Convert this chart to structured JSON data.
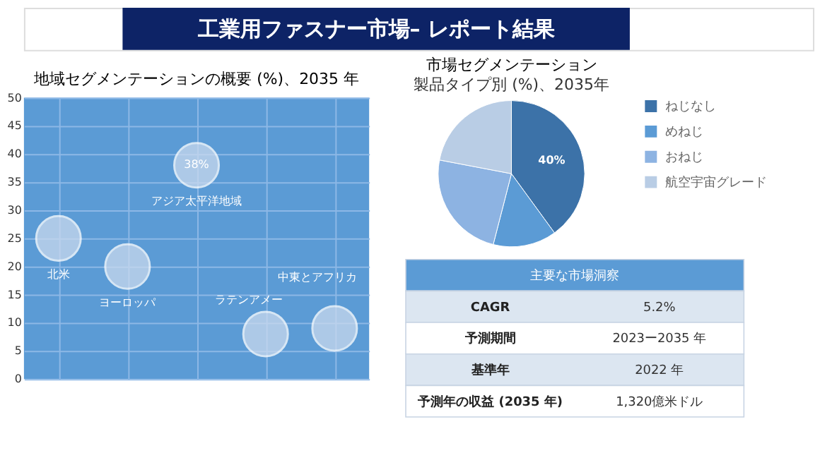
{
  "chart_data": [
    {
      "type": "other",
      "title": "工業用ファスナー市場– レポート結果"
    },
    {
      "type": "bubble",
      "title": "地域セグメンテーションの概要 (%)、2035 年",
      "categories": [
        null,
        null,
        null,
        null,
        null
      ],
      "ylim": [
        0,
        50
      ],
      "yticks": [
        0,
        5,
        10,
        15,
        20,
        25,
        30,
        35,
        40,
        45,
        50
      ],
      "grid": true,
      "tick_labels": "y",
      "legend": false,
      "series": [
        {
          "name": "北米",
          "color": "#c9d9ee",
          "values": [
            25,
            null,
            null,
            null,
            null
          ],
          "sizes": [
            1,
            null,
            null,
            null,
            null
          ]
        },
        {
          "name": "ヨーロッパ",
          "color": "#c9d9ee",
          "values": [
            null,
            20,
            null,
            null,
            null
          ],
          "sizes": [
            null,
            1,
            null,
            null,
            null
          ]
        },
        {
          "name": "アジア太平洋地域",
          "color": "#c9d9ee",
          "values": [
            null,
            null,
            38,
            null,
            null
          ],
          "sizes": [
            null,
            null,
            1,
            null,
            null
          ],
          "value_labels": [
            null,
            null,
            "38%",
            null,
            null
          ]
        },
        {
          "name": "ラテンアメー",
          "color": "#c9d9ee",
          "values": [
            null,
            null,
            null,
            8,
            null
          ],
          "sizes": [
            null,
            null,
            null,
            1,
            null
          ]
        },
        {
          "name": "中東とアフリカ",
          "color": "#c9d9ee",
          "values": [
            null,
            null,
            null,
            null,
            9
          ],
          "sizes": [
            null,
            null,
            null,
            null,
            1
          ]
        }
      ]
    },
    {
      "type": "pie",
      "title": "市場セグメンテーション",
      "subtitle": "製品タイプ別 (%)、2035年",
      "legend": "right",
      "categories": [
        "ねじなし",
        "めねじ",
        "おねじ",
        "航空宇宙グレード"
      ],
      "values": [
        40,
        14,
        24,
        22
      ],
      "colors": [
        "#3c72a8",
        "#5b9bd5",
        "#8db3e2",
        "#b9cde5"
      ],
      "value_labels": [
        "40%",
        null,
        null,
        null
      ]
    },
    {
      "type": "other",
      "title": "主要な市場洞察",
      "annotations": [
        "CAGR",
        "5.2%",
        "予測期間",
        "2023ー2035 年",
        "基準年",
        "2022 年",
        "予測年の収益 (2035 年)",
        "1,320億米ドル"
      ]
    }
  ]
}
